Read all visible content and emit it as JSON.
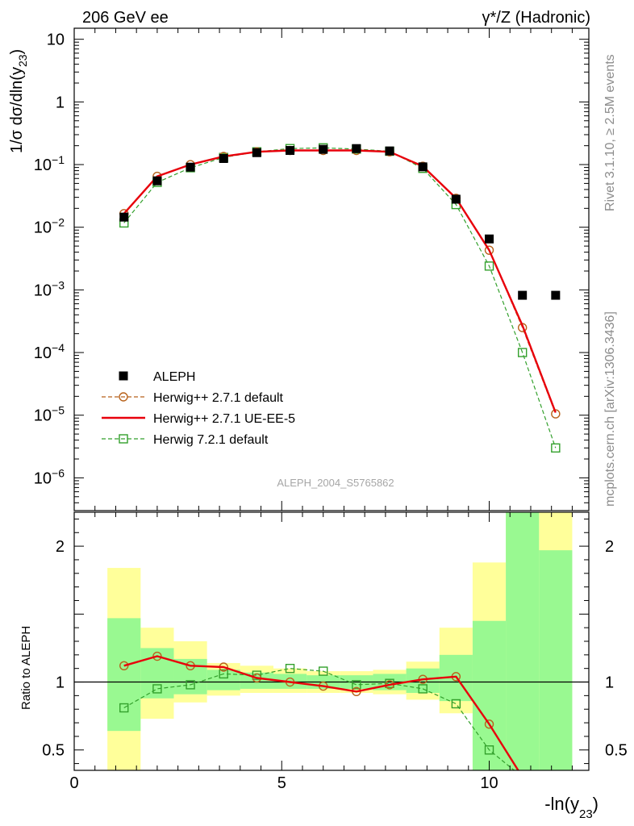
{
  "header": {
    "left": "206 GeV ee",
    "right": "γ*/Z (Hadronic)"
  },
  "side_labels": {
    "rivet": "Rivet 3.1.10, ≥ 2.5M events",
    "mcplots": "mcplots.cern.ch [arXiv:1306.3436]"
  },
  "watermark": "ALEPH_2004_S5765862",
  "chart_data": [
    {
      "type": "scatter",
      "panel": "main",
      "ylabel": "1/σ dσ/dln(y23)",
      "yscale": "log",
      "ylim": [
        3e-07,
        15
      ],
      "xlim": [
        0,
        12.4
      ],
      "y_ticks": [
        {
          "mant": "10",
          "exp": ""
        },
        {
          "mant": "1",
          "exp": ""
        },
        {
          "mant": "10",
          "exp": "−1"
        },
        {
          "mant": "10",
          "exp": "−2"
        },
        {
          "mant": "10",
          "exp": "−3"
        },
        {
          "mant": "10",
          "exp": "−4"
        },
        {
          "mant": "10",
          "exp": "−5"
        },
        {
          "mant": "10",
          "exp": "−6"
        }
      ],
      "legend_position": "lower-left",
      "x": [
        1.2,
        2.0,
        2.8,
        3.6,
        4.4,
        5.2,
        6.0,
        6.8,
        7.6,
        8.4,
        9.2,
        10.0,
        10.8,
        11.6
      ],
      "series": [
        {
          "name": "ALEPH",
          "color": "#000000",
          "marker": "filled-square",
          "values": [
            0.0145,
            0.055,
            0.091,
            0.125,
            0.155,
            0.168,
            0.175,
            0.18,
            0.165,
            0.092,
            0.028,
            0.0065,
            0.00082,
            0.00082
          ]
        },
        {
          "name": "Herwig++ 2.7.1 default",
          "color": "#b8621b",
          "marker": "open-circle",
          "dash": true,
          "values": [
            0.0165,
            0.065,
            0.1,
            0.135,
            0.16,
            0.168,
            0.168,
            0.168,
            0.16,
            0.094,
            0.029,
            0.0043,
            0.00025,
            1.05e-05
          ]
        },
        {
          "name": "Herwig++ 2.7.1 UE-EE-5",
          "color": "#e8000b",
          "marker": "none",
          "dash": false,
          "values": [
            0.0165,
            0.065,
            0.1,
            0.135,
            0.16,
            0.168,
            0.168,
            0.168,
            0.16,
            0.094,
            0.029,
            0.0043,
            0.00027,
            1.1e-05
          ]
        },
        {
          "name": "Herwig 7.2.1 default",
          "color": "#33a02c",
          "marker": "open-square",
          "dash": true,
          "values": [
            0.0117,
            0.052,
            0.089,
            0.13,
            0.16,
            0.18,
            0.185,
            0.177,
            0.163,
            0.087,
            0.023,
            0.0024,
            0.0001,
            3e-06
          ]
        }
      ]
    },
    {
      "type": "scatter",
      "panel": "ratio",
      "ylabel": "Ratio to ALEPH",
      "xlabel": "-ln(y23)",
      "ylim": [
        0.35,
        2.25
      ],
      "xlim": [
        0,
        12.4
      ],
      "y_ticks": [
        2,
        1,
        0.5
      ],
      "y_tick_labels": [
        "2",
        "1",
        "0.5"
      ],
      "x_ticks": [
        0,
        5,
        10
      ],
      "x_tick_labels": [
        "0",
        "5",
        "10"
      ],
      "x": [
        1.2,
        2.0,
        2.8,
        3.6,
        4.4,
        5.2,
        6.0,
        6.8,
        7.6,
        8.4,
        9.2,
        10.0,
        10.8,
        11.6
      ],
      "band_edges": [
        0.8,
        1.6,
        2.4,
        3.2,
        4.0,
        4.8,
        5.6,
        6.4,
        7.2,
        8.0,
        8.8,
        9.6,
        10.4,
        11.2,
        12.0
      ],
      "band_inner": [
        [
          0.64,
          1.47
        ],
        [
          0.88,
          1.25
        ],
        [
          0.91,
          1.17
        ],
        [
          0.94,
          1.09
        ],
        [
          0.95,
          1.07
        ],
        [
          0.95,
          1.06
        ],
        [
          0.95,
          1.05
        ],
        [
          0.95,
          1.05
        ],
        [
          0.94,
          1.06
        ],
        [
          0.92,
          1.1
        ],
        [
          0.86,
          1.2
        ],
        [
          0.3,
          1.45
        ],
        [
          0.3,
          2.4
        ],
        [
          0.3,
          1.97
        ]
      ],
      "band_outer": [
        [
          0.3,
          1.84
        ],
        [
          0.73,
          1.4
        ],
        [
          0.85,
          1.3
        ],
        [
          0.9,
          1.14
        ],
        [
          0.92,
          1.12
        ],
        [
          0.92,
          1.1
        ],
        [
          0.92,
          1.08
        ],
        [
          0.92,
          1.08
        ],
        [
          0.91,
          1.09
        ],
        [
          0.87,
          1.15
        ],
        [
          0.77,
          1.4
        ],
        [
          0.3,
          1.88
        ],
        [
          0.3,
          2.4
        ],
        [
          0.3,
          2.4
        ]
      ],
      "band_colors": {
        "inner": "#99f991",
        "outer": "#ffff9a"
      },
      "series": [
        {
          "name": "Herwig++ 2.7.1 default",
          "color": "#b8621b",
          "marker": "open-circle",
          "dash": true,
          "values": [
            1.12,
            1.19,
            1.12,
            1.11,
            1.03,
            1.0,
            0.97,
            0.93,
            0.98,
            1.02,
            1.04,
            0.69,
            0.3,
            null
          ]
        },
        {
          "name": "Herwig++ 2.7.1 UE-EE-5",
          "color": "#e8000b",
          "marker": "none",
          "dash": false,
          "values": [
            1.12,
            1.19,
            1.12,
            1.11,
            1.03,
            1.0,
            0.97,
            0.93,
            0.98,
            1.02,
            1.04,
            0.69,
            0.3,
            null
          ]
        },
        {
          "name": "Herwig 7.2.1 default",
          "color": "#33a02c",
          "marker": "open-square",
          "dash": true,
          "values": [
            0.81,
            0.95,
            0.98,
            1.06,
            1.05,
            1.1,
            1.08,
            0.98,
            0.99,
            0.95,
            0.84,
            0.5,
            0.3,
            null
          ]
        }
      ]
    }
  ]
}
